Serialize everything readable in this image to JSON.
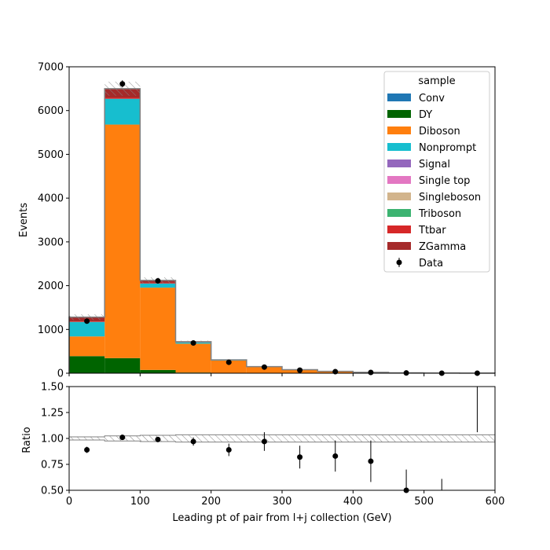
{
  "chart_data": [
    {
      "type": "bar",
      "stacked": true,
      "bin_edges": [
        0,
        50,
        100,
        150,
        200,
        250,
        300,
        350,
        400,
        450,
        500,
        550,
        600
      ],
      "xlim": [
        0,
        600
      ],
      "ylim": [
        0,
        7000
      ],
      "ylabel": "Events",
      "yticks": [
        0,
        1000,
        2000,
        3000,
        4000,
        5000,
        6000,
        7000
      ],
      "legend": {
        "title": "sample",
        "placement": "top-right",
        "data_label": "Data"
      },
      "series": [
        {
          "name": "Conv",
          "color": "#1f77b4",
          "values": [
            0,
            0,
            0,
            0,
            0,
            0,
            0,
            0,
            0,
            0,
            0,
            0
          ]
        },
        {
          "name": "DY",
          "color": "#006400",
          "values": [
            390,
            345,
            75,
            15,
            5,
            3,
            2,
            1,
            0,
            0,
            0,
            0
          ]
        },
        {
          "name": "Diboson",
          "color": "#ff7f0e",
          "values": [
            450,
            5335,
            1880,
            660,
            285,
            140,
            75,
            40,
            20,
            10,
            5,
            3
          ]
        },
        {
          "name": "Nonprompt",
          "color": "#17becf",
          "values": [
            330,
            590,
            95,
            30,
            10,
            5,
            3,
            2,
            1,
            0,
            0,
            0
          ]
        },
        {
          "name": "Signal",
          "color": "#9467bd",
          "values": [
            0,
            0,
            0,
            0,
            0,
            0,
            0,
            0,
            0,
            0,
            0,
            0
          ]
        },
        {
          "name": "Single top",
          "color": "#e377c2",
          "values": [
            0,
            0,
            0,
            0,
            0,
            0,
            0,
            0,
            0,
            0,
            0,
            0
          ]
        },
        {
          "name": "Singleboson",
          "color": "#d2b48c",
          "values": [
            0,
            0,
            0,
            0,
            0,
            0,
            0,
            0,
            0,
            0,
            0,
            0
          ]
        },
        {
          "name": "Triboson",
          "color": "#3cb371",
          "values": [
            0,
            0,
            0,
            0,
            0,
            0,
            0,
            0,
            0,
            0,
            0,
            0
          ]
        },
        {
          "name": "Ttbar",
          "color": "#d62728",
          "values": [
            10,
            30,
            15,
            5,
            2,
            1,
            0,
            0,
            0,
            0,
            0,
            0
          ]
        },
        {
          "name": "ZGamma",
          "color": "#a52a2a",
          "values": [
            100,
            200,
            55,
            10,
            3,
            1,
            0,
            0,
            0,
            0,
            0,
            0
          ]
        }
      ],
      "uncertainty": [
        65,
        160,
        70,
        25,
        10,
        6,
        4,
        3,
        2,
        1,
        1,
        1
      ],
      "data_points": {
        "name": "Data",
        "x": [
          25,
          75,
          125,
          175,
          225,
          275,
          325,
          375,
          425,
          475,
          525,
          575
        ],
        "y": [
          1190,
          6610,
          2110,
          690,
          250,
          140,
          70,
          35,
          18,
          6,
          1,
          1
        ]
      }
    },
    {
      "type": "scatter",
      "xlabel": "Leading pt of pair from l+j collection (GeV)",
      "ylabel": "Ratio",
      "xlim": [
        0,
        600
      ],
      "ylim": [
        0.5,
        1.5
      ],
      "xticks": [
        0,
        100,
        200,
        300,
        400,
        500,
        600
      ],
      "yticks": [
        "0.50",
        "0.75",
        "1.00",
        "1.25",
        "1.50"
      ],
      "uncertainty_band": [
        0.015,
        0.025,
        0.03,
        0.035,
        0.035,
        0.035,
        0.035,
        0.035,
        0.035,
        0.035,
        0.035,
        0.035
      ],
      "x": [
        25,
        75,
        125,
        175,
        225,
        275,
        325,
        375,
        425,
        475,
        525,
        575
      ],
      "y": [
        0.89,
        1.01,
        0.99,
        0.97,
        0.89,
        0.97,
        0.82,
        0.83,
        0.78,
        0.5,
        null,
        null
      ],
      "err": [
        0.03,
        0.015,
        0.025,
        0.04,
        0.06,
        0.09,
        0.11,
        0.15,
        0.2,
        0.2,
        null,
        null
      ],
      "err_segments": [
        {
          "x": 525,
          "low": 0.5,
          "high": 0.61
        },
        {
          "x": 575,
          "low": 1.06,
          "high": 1.5
        }
      ]
    }
  ]
}
